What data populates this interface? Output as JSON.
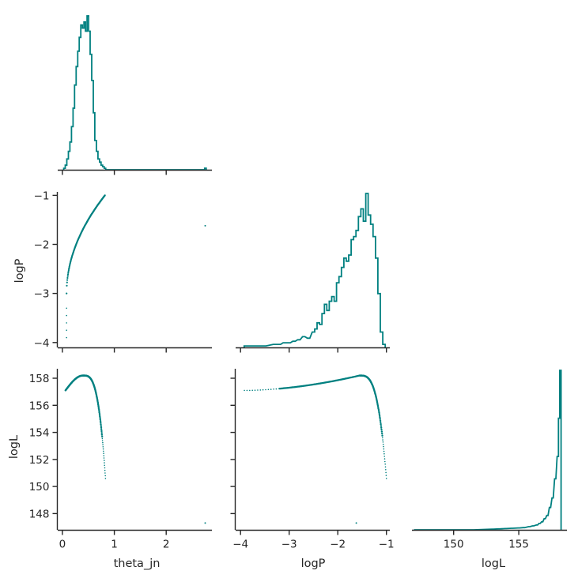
{
  "chart_data": {
    "type": "corner",
    "color": "#008080",
    "axis_color": "#262626",
    "variables": [
      "theta_jn",
      "logP",
      "logL"
    ],
    "ranges": {
      "theta_jn": [
        -0.09,
        2.88
      ],
      "logP": [
        -4.1,
        -0.93
      ],
      "logL": [
        146.8,
        158.7
      ]
    },
    "ticks": {
      "theta_jn": [
        0,
        1,
        2
      ],
      "logP": [
        -4,
        -3,
        -2,
        -1
      ],
      "logL": [
        148,
        150,
        152,
        154,
        156,
        158
      ],
      "logL_hist_x": [
        150,
        155
      ]
    },
    "tick_labels": {
      "theta_jn": [
        "0",
        "1",
        "2"
      ],
      "logP": [
        "−4",
        "−3",
        "−2",
        "−1"
      ],
      "logL": [
        "148",
        "150",
        "152",
        "154",
        "156",
        "158"
      ],
      "logL_hist_x": [
        "150",
        "155"
      ]
    },
    "axis_labels": {
      "theta_jn": "theta_jn",
      "logP": "logP",
      "logL": "logL"
    },
    "hist_theta_jn": {
      "x": [
        0.04,
        0.07,
        0.1,
        0.13,
        0.16,
        0.19,
        0.22,
        0.25,
        0.28,
        0.31,
        0.34,
        0.37,
        0.4,
        0.43,
        0.46,
        0.49,
        0.52,
        0.55,
        0.58,
        0.61,
        0.64,
        0.67,
        0.7,
        0.73,
        0.76,
        0.79,
        0.82,
        0.85
      ],
      "density": [
        0.01,
        0.03,
        0.07,
        0.12,
        0.18,
        0.28,
        0.4,
        0.55,
        0.67,
        0.77,
        0.86,
        0.94,
        0.92,
        0.96,
        0.9,
        1.0,
        0.9,
        0.75,
        0.58,
        0.37,
        0.19,
        0.12,
        0.07,
        0.05,
        0.03,
        0.02,
        0.01,
        0.0
      ],
      "tail": [
        [
          2.75,
          0.01
        ]
      ]
    },
    "hist_logP": {
      "x": [
        -3.9,
        -3.7,
        -3.5,
        -3.3,
        -3.2,
        -3.1,
        -3.0,
        -2.9,
        -2.8,
        -2.7,
        -2.6,
        -2.5,
        -2.45,
        -2.4,
        -2.35,
        -2.3,
        -2.25,
        -2.2,
        -2.15,
        -2.1,
        -2.05,
        -2.0,
        -1.95,
        -1.9,
        -1.85,
        -1.8,
        -1.75,
        -1.7,
        -1.65,
        -1.6,
        -1.55,
        -1.5,
        -1.45,
        -1.4,
        -1.35,
        -1.3,
        -1.25,
        -1.2,
        -1.15,
        -1.1,
        -1.05
      ],
      "density": [
        0.01,
        0.01,
        0.01,
        0.02,
        0.02,
        0.03,
        0.03,
        0.04,
        0.05,
        0.07,
        0.06,
        0.1,
        0.12,
        0.16,
        0.15,
        0.22,
        0.28,
        0.24,
        0.3,
        0.33,
        0.3,
        0.42,
        0.46,
        0.52,
        0.58,
        0.56,
        0.6,
        0.7,
        0.72,
        0.76,
        0.85,
        0.9,
        0.82,
        1.0,
        0.86,
        0.8,
        0.72,
        0.58,
        0.35,
        0.1,
        0.02
      ]
    },
    "hist_logL": {
      "x": [
        147.0,
        148.5,
        150.0,
        151.5,
        153.0,
        153.5,
        154.0,
        154.5,
        155.0,
        155.4,
        155.8,
        156.1,
        156.4,
        156.6,
        156.8,
        157.0,
        157.2,
        157.4,
        157.6,
        157.8,
        158.0,
        158.1,
        158.2
      ],
      "density": [
        0.0,
        0.0,
        0.0,
        0.0,
        0.004,
        0.006,
        0.008,
        0.01,
        0.012,
        0.014,
        0.02,
        0.025,
        0.03,
        0.04,
        0.05,
        0.07,
        0.09,
        0.14,
        0.2,
        0.32,
        0.46,
        0.7,
        1.0
      ]
    },
    "scatter": {
      "theta_logP_curve": {
        "x_start": 0.08,
        "x_end": 0.82,
        "y_min": -3.0,
        "y_max": -1.0
      },
      "theta_logP_outlier": [
        2.75,
        -1.62
      ],
      "theta_logL_curve": {
        "x_start": 0.06,
        "x_peak": 0.4,
        "x_end": 0.83,
        "y_start": 157.1,
        "y_peak": 158.2,
        "y_end": 150.6
      },
      "theta_logL_outlier": [
        2.75,
        147.3
      ],
      "logP_logL_curve": {
        "x_start": -3.92,
        "x_peak": -1.55,
        "x_end": -1.0,
        "y_start": 157.1,
        "y_peak": 158.2,
        "y_end": 150.6
      },
      "logP_logL_outlier": [
        -1.62,
        147.3
      ]
    }
  }
}
